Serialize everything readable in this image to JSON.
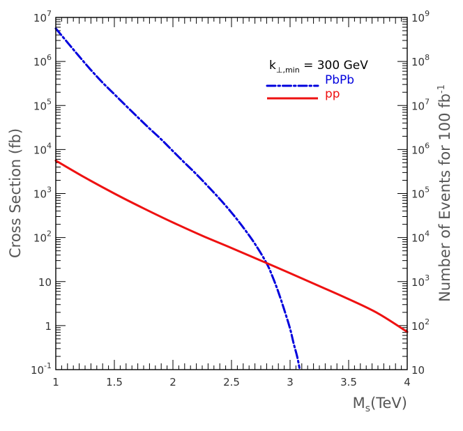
{
  "chart_data": {
    "type": "line",
    "xlabel": "M_s(TeV)",
    "ylabel_left": "Cross Section (fb)",
    "ylabel_right": "Number of Events for 100 fb^-1",
    "xlim": [
      1,
      4
    ],
    "ylim_left": [
      0.1,
      10000000
    ],
    "ylim_right": [
      10,
      1000000000
    ],
    "yscale": "log",
    "grid": false,
    "x_ticks": [
      {
        "value": 1,
        "label": "1"
      },
      {
        "value": 1.5,
        "label": "1.5"
      },
      {
        "value": 2,
        "label": "2"
      },
      {
        "value": 2.5,
        "label": "2.5"
      },
      {
        "value": 3,
        "label": "3"
      },
      {
        "value": 3.5,
        "label": "3.5"
      },
      {
        "value": 4,
        "label": "4"
      }
    ],
    "y_ticks_left": [
      {
        "value": 0.1,
        "base": "10",
        "exp": "-1"
      },
      {
        "value": 1,
        "base": "1",
        "exp": ""
      },
      {
        "value": 10,
        "base": "10",
        "exp": ""
      },
      {
        "value": 100,
        "base": "10",
        "exp": "2"
      },
      {
        "value": 1000,
        "base": "10",
        "exp": "3"
      },
      {
        "value": 10000,
        "base": "10",
        "exp": "4"
      },
      {
        "value": 100000,
        "base": "10",
        "exp": "5"
      },
      {
        "value": 1000000,
        "base": "10",
        "exp": "6"
      },
      {
        "value": 10000000,
        "base": "10",
        "exp": "7"
      }
    ],
    "y_ticks_right": [
      {
        "value": 10,
        "base": "10",
        "exp": ""
      },
      {
        "value": 100,
        "base": "10",
        "exp": "2"
      },
      {
        "value": 1000,
        "base": "10",
        "exp": "3"
      },
      {
        "value": 10000,
        "base": "10",
        "exp": "4"
      },
      {
        "value": 100000,
        "base": "10",
        "exp": "5"
      },
      {
        "value": 1000000,
        "base": "10",
        "exp": "6"
      },
      {
        "value": 10000000,
        "base": "10",
        "exp": "7"
      },
      {
        "value": 100000000,
        "base": "10",
        "exp": "8"
      },
      {
        "value": 1000000000,
        "base": "10",
        "exp": "9"
      }
    ],
    "legend": {
      "placement": "top-right",
      "header": "k_⊥,min = 300 GeV"
    },
    "series": [
      {
        "name": "PbPb",
        "color": "#0000dd",
        "style": "dash-dot",
        "x": [
          1.0,
          1.1,
          1.2,
          1.3,
          1.4,
          1.5,
          1.6,
          1.7,
          1.8,
          1.9,
          2.0,
          2.1,
          2.2,
          2.3,
          2.4,
          2.5,
          2.6,
          2.7,
          2.8,
          2.85,
          2.9,
          2.95,
          3.0,
          3.03,
          3.06,
          3.08
        ],
        "y": [
          5600000,
          2700000,
          1300000,
          640000,
          330000,
          180000,
          98000,
          54000,
          30000,
          17000,
          9200,
          5000,
          2750,
          1450,
          750,
          370,
          170,
          72,
          26,
          13,
          5.8,
          2.3,
          0.85,
          0.4,
          0.2,
          0.11
        ]
      },
      {
        "name": "pp",
        "color": "#ee1111",
        "style": "solid",
        "x": [
          1.0,
          1.25,
          1.5,
          1.75,
          2.0,
          2.25,
          2.5,
          2.75,
          3.0,
          3.25,
          3.5,
          3.75,
          4.0
        ],
        "y": [
          5600,
          2300,
          1000,
          460,
          220,
          110,
          58,
          30,
          15.5,
          7.9,
          4.0,
          1.9,
          0.72
        ]
      }
    ]
  }
}
